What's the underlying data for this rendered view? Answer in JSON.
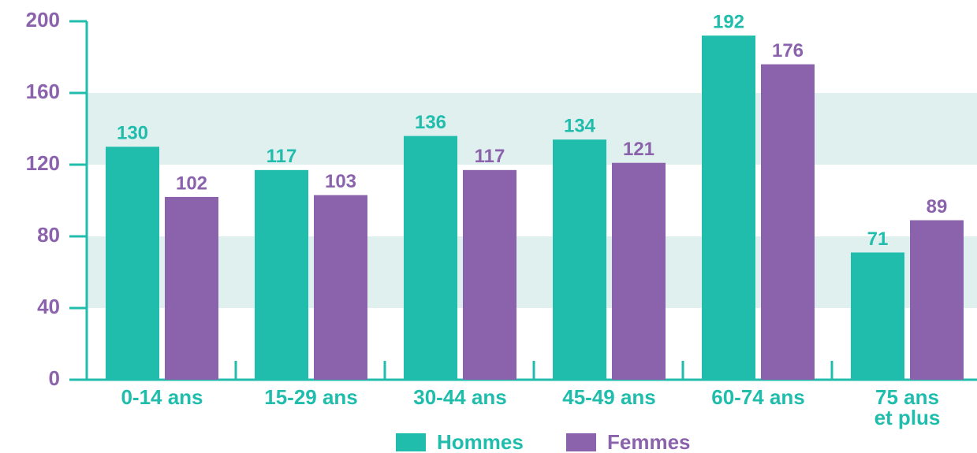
{
  "chart_data": {
    "type": "bar",
    "categories": [
      "0-14 ans",
      "15-29 ans",
      "30-44 ans",
      "45-49 ans",
      "60-74 ans",
      "75 ans\net plus"
    ],
    "series": [
      {
        "name": "Hommes",
        "color": "#20bdad",
        "values": [
          130,
          117,
          136,
          134,
          192,
          71
        ]
      },
      {
        "name": "Femmes",
        "color": "#8b62ac",
        "values": [
          102,
          103,
          117,
          121,
          176,
          89
        ]
      }
    ],
    "ylim": [
      0,
      200
    ],
    "yticks": [
      0,
      40,
      80,
      120,
      160,
      200
    ],
    "grid": true,
    "legend": "bottom"
  }
}
